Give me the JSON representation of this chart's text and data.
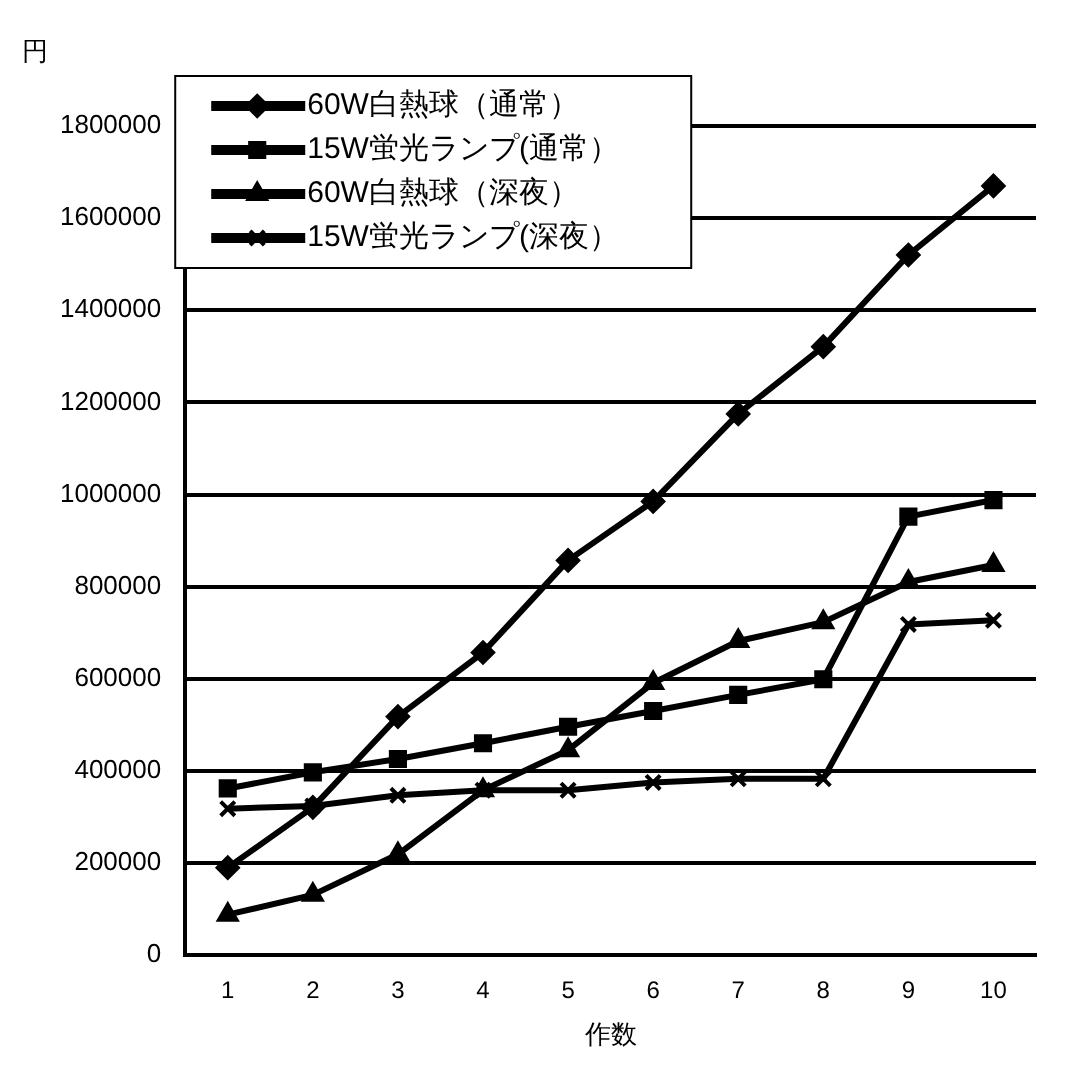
{
  "chart_data": {
    "type": "line",
    "xlabel": "作数",
    "ylabel": "円",
    "categories": [
      "1",
      "2",
      "3",
      "4",
      "5",
      "6",
      "7",
      "8",
      "9",
      "10"
    ],
    "ylim": [
      0,
      1800000
    ],
    "yticks": [
      0,
      200000,
      400000,
      600000,
      800000,
      1000000,
      1200000,
      1400000,
      1600000,
      1800000
    ],
    "grid": "y",
    "legend": "top left",
    "series": [
      {
        "name": "60W白熱球（通常）",
        "color": "#000000",
        "marker": "diamond",
        "values": [
          190000,
          321000,
          518000,
          657000,
          857000,
          985000,
          1175000,
          1321000,
          1520000,
          1670000
        ]
      },
      {
        "name": "15W蛍光ランプ(通常）",
        "color": "#000000",
        "marker": "square",
        "values": [
          362000,
          397000,
          426000,
          460000,
          496000,
          530000,
          565000,
          599000,
          952000,
          988000
        ]
      },
      {
        "name": "60W白熱球（深夜）",
        "color": "#000000",
        "marker": "triangle",
        "values": [
          88000,
          131000,
          219000,
          358000,
          445000,
          591000,
          682000,
          723000,
          810000,
          847000
        ]
      },
      {
        "name": "15W蛍光ランプ(深夜）",
        "color": "#000000",
        "marker": "cross",
        "values": [
          318000,
          324000,
          347000,
          358000,
          358000,
          375000,
          383000,
          383000,
          718000,
          727000
        ]
      }
    ]
  }
}
